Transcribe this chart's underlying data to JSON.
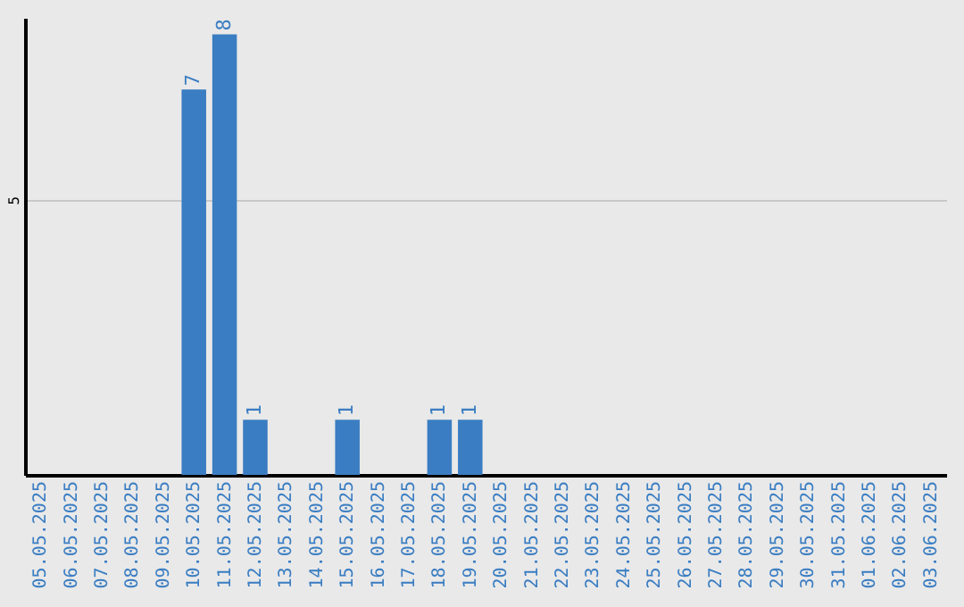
{
  "chart_data": {
    "type": "bar",
    "categories": [
      "05.05.2025",
      "06.05.2025",
      "07.05.2025",
      "08.05.2025",
      "09.05.2025",
      "10.05.2025",
      "11.05.2025",
      "12.05.2025",
      "13.05.2025",
      "14.05.2025",
      "15.05.2025",
      "16.05.2025",
      "17.05.2025",
      "18.05.2025",
      "19.05.2025",
      "20.05.2025",
      "21.05.2025",
      "22.05.2025",
      "23.05.2025",
      "24.05.2025",
      "25.05.2025",
      "26.05.2025",
      "27.05.2025",
      "28.05.2025",
      "29.05.2025",
      "30.05.2025",
      "31.05.2025",
      "01.06.2025",
      "02.06.2025",
      "03.06.2025"
    ],
    "values": [
      0,
      0,
      0,
      0,
      0,
      7,
      8,
      1,
      0,
      0,
      1,
      0,
      0,
      1,
      1,
      0,
      0,
      0,
      0,
      0,
      0,
      0,
      0,
      0,
      0,
      0,
      0,
      0,
      0,
      0
    ],
    "value_labels": [
      null,
      null,
      null,
      null,
      null,
      "7",
      "8",
      "1",
      null,
      null,
      "1",
      null,
      null,
      "1",
      "1",
      null,
      null,
      null,
      null,
      null,
      null,
      null,
      null,
      null,
      null,
      null,
      null,
      null,
      null,
      null
    ],
    "color": "#3a7dc2",
    "ylim": [
      0,
      8.3
    ],
    "yticks": [
      5
    ],
    "grid": "y"
  }
}
